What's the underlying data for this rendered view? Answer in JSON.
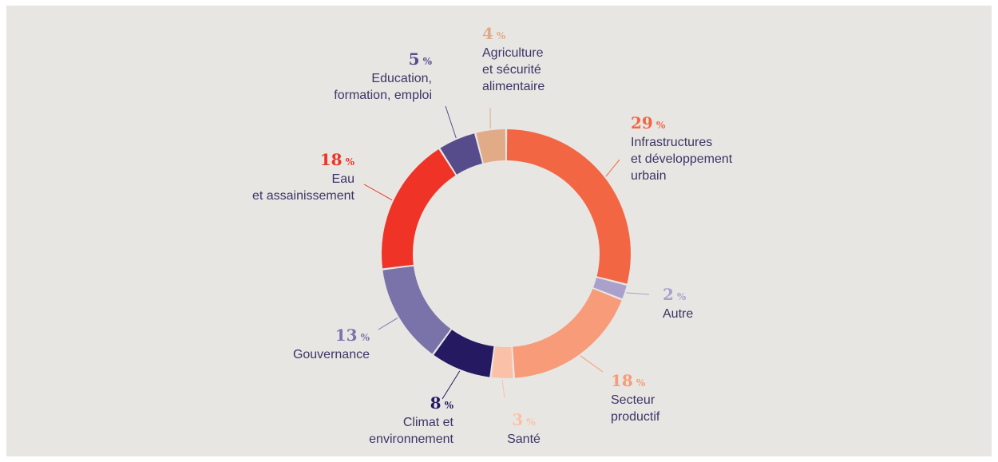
{
  "chart_data": {
    "type": "donut",
    "percent_symbol": "%",
    "slices": [
      {
        "key": "infrastructures",
        "value": 29,
        "label_lines": [
          "Infrastructures",
          "et développement",
          "urbain"
        ],
        "color": "#f26644",
        "label_color": "#f26644"
      },
      {
        "key": "autre",
        "value": 2,
        "label_lines": [
          "Autre"
        ],
        "color": "#a9a1cc",
        "label_color": "#a9a1cc"
      },
      {
        "key": "secteur-productif",
        "value": 18,
        "label_lines": [
          "Secteur",
          "productif"
        ],
        "color": "#f79b78",
        "label_color": "#f79b78"
      },
      {
        "key": "sante",
        "value": 3,
        "label_lines": [
          "Santé"
        ],
        "color": "#fbc1a8",
        "label_color": "#fbc1a8"
      },
      {
        "key": "climat",
        "value": 8,
        "label_lines": [
          "Climat et",
          "environnement"
        ],
        "color": "#251a62",
        "label_color": "#251a62"
      },
      {
        "key": "gouvernance",
        "value": 13,
        "label_lines": [
          "Gouvernance"
        ],
        "color": "#7a73aa",
        "label_color": "#7a73aa"
      },
      {
        "key": "eau",
        "value": 18,
        "label_lines": [
          "Eau",
          "et assainissement"
        ],
        "color": "#ef3326",
        "label_color": "#ef3326"
      },
      {
        "key": "education",
        "value": 5,
        "label_lines": [
          "Education,",
          "formation, emploi"
        ],
        "color": "#564c8c",
        "label_color": "#564c8c"
      },
      {
        "key": "agriculture",
        "value": 4,
        "label_lines": [
          "Agriculture",
          "et sécurité",
          "alimentaire"
        ],
        "color": "#e0ab86",
        "label_color": "#e0ab86"
      }
    ]
  }
}
